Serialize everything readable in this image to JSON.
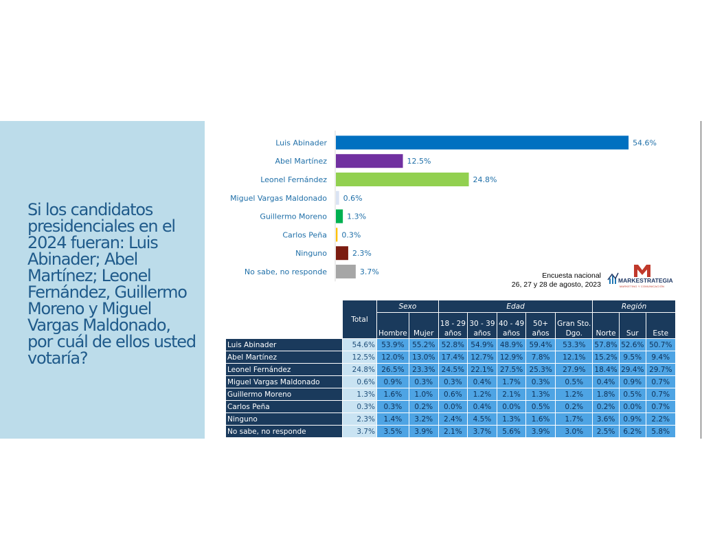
{
  "question": "Si los candidatos presidenciales en el 2024 fueran: Luis Abinader; Abel Martínez; Leonel Fernández, Guillermo Moreno y Miguel Vargas Maldonado, por cuál de ellos usted votaría?",
  "chart_data": {
    "type": "bar",
    "orientation": "horizontal",
    "categories": [
      "Luis Abinader",
      "Abel Martínez",
      "Leonel Fernández",
      "Miguel Vargas Maldonado",
      "Guillermo Moreno",
      "Carlos Peña",
      "Ninguno",
      "No sabe, no responde"
    ],
    "values": [
      54.6,
      12.5,
      24.8,
      0.6,
      1.3,
      0.3,
      2.3,
      3.7
    ],
    "value_labels": [
      "54.6%",
      "12.5%",
      "24.8%",
      "0.6%",
      "1.3%",
      "0.3%",
      "2.3%",
      "3.7%"
    ],
    "colors": [
      "#0070c0",
      "#7030a0",
      "#92d050",
      "#dae3f3",
      "#00b050",
      "#ffc000",
      "#7b1c10",
      "#a6a6a6"
    ],
    "label_color": "#1f6fa8",
    "xlim": [
      0,
      56
    ],
    "grid": false,
    "legend": "none"
  },
  "source": {
    "line1": "Encuesta nacional",
    "line2": "26, 27 y 28 de agosto, 2023"
  },
  "logo": {
    "name": "MARKESTRATEGIA",
    "tagline": "MARKETING Y COMUNICACIÓN"
  },
  "table": {
    "total_header": "Total",
    "groups": [
      {
        "label": "Sexo",
        "span": 2
      },
      {
        "label": "Edad",
        "span": 5
      },
      {
        "label": "Región",
        "span": 3
      }
    ],
    "subheaders": [
      [
        "Hombre"
      ],
      [
        "Mujer"
      ],
      [
        "18 - 29",
        "años"
      ],
      [
        "30 - 39",
        "años"
      ],
      [
        "40 - 49",
        "años"
      ],
      [
        "50+",
        "años"
      ],
      [
        "Gran Sto.",
        "Dgo."
      ],
      [
        "Norte"
      ],
      [
        "Sur"
      ],
      [
        "Este"
      ]
    ],
    "rows": [
      {
        "label": "Luis Abinader",
        "total": "54.6%",
        "values": [
          "53.9%",
          "55.2%",
          "52.8%",
          "54.9%",
          "48.9%",
          "59.4%",
          "53.3%",
          "57.8%",
          "52.6%",
          "50.7%"
        ]
      },
      {
        "label": "Abel Martínez",
        "total": "12.5%",
        "values": [
          "12.0%",
          "13.0%",
          "17.4%",
          "12.7%",
          "12.9%",
          "7.8%",
          "12.1%",
          "15.2%",
          "9.5%",
          "9.4%"
        ]
      },
      {
        "label": "Leonel Fernández",
        "total": "24.8%",
        "values": [
          "26.5%",
          "23.3%",
          "24.5%",
          "22.1%",
          "27.5%",
          "25.3%",
          "27.9%",
          "18.4%",
          "29.4%",
          "29.7%"
        ]
      },
      {
        "label": "Miguel Vargas Maldonado",
        "total": "0.6%",
        "values": [
          "0.9%",
          "0.3%",
          "0.3%",
          "0.4%",
          "1.7%",
          "0.3%",
          "0.5%",
          "0.4%",
          "0.9%",
          "0.7%"
        ]
      },
      {
        "label": "Guillermo Moreno",
        "total": "1.3%",
        "values": [
          "1.6%",
          "1.0%",
          "0.6%",
          "1.2%",
          "2.1%",
          "1.3%",
          "1.2%",
          "1.8%",
          "0.5%",
          "0.7%"
        ]
      },
      {
        "label": "Carlos Peña",
        "total": "0.3%",
        "values": [
          "0.3%",
          "0.2%",
          "0.0%",
          "0.4%",
          "0.0%",
          "0.5%",
          "0.2%",
          "0.2%",
          "0.0%",
          "0.7%"
        ]
      },
      {
        "label": "Ninguno",
        "total": "2.3%",
        "values": [
          "1.4%",
          "3.2%",
          "2.4%",
          "4.5%",
          "1.3%",
          "1.6%",
          "1.7%",
          "3.6%",
          "0.9%",
          "2.2%"
        ]
      },
      {
        "label": "No sabe, no responde",
        "total": "3.7%",
        "values": [
          "3.5%",
          "3.9%",
          "2.1%",
          "3.7%",
          "5.6%",
          "3.9%",
          "3.0%",
          "2.5%",
          "6.2%",
          "5.8%"
        ]
      }
    ]
  }
}
